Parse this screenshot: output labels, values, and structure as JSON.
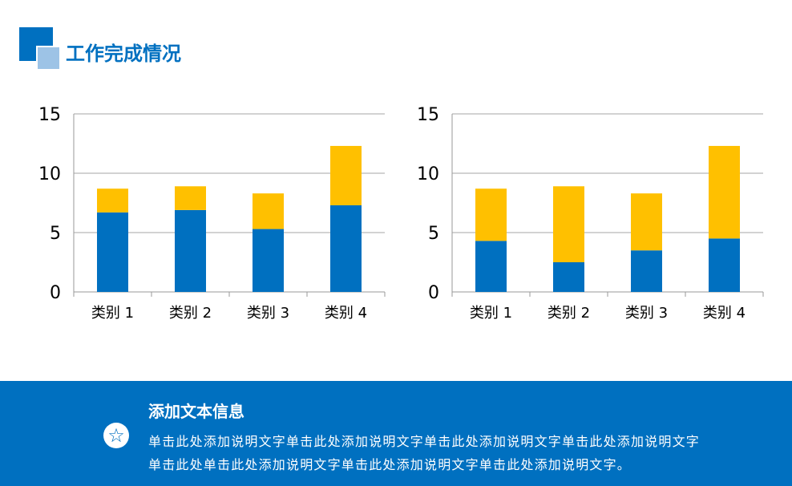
{
  "header": {
    "title": "工作完成情况"
  },
  "colors": {
    "accent": "#0070C0",
    "series_blue": "#0070C0",
    "series_orange": "#FFC000",
    "light_accent": "#9DC3E6"
  },
  "chart_data": [
    {
      "type": "bar",
      "stacked": true,
      "categories": [
        "类别 1",
        "类别 2",
        "类别 3",
        "类别 4"
      ],
      "series": [
        {
          "values": [
            6.7,
            6.9,
            5.3,
            7.3
          ],
          "color": "#0070C0"
        },
        {
          "values": [
            2,
            2,
            3,
            5
          ],
          "color": "#FFC000"
        }
      ],
      "ylim": [
        0,
        15
      ],
      "yticks": [
        "0",
        "5",
        "10",
        "15"
      ],
      "grid": true,
      "legend": "none"
    },
    {
      "type": "bar",
      "stacked": true,
      "categories": [
        "类别 1",
        "类别 2",
        "类别 3",
        "类别 4"
      ],
      "series": [
        {
          "values": [
            4.3,
            2.5,
            3.5,
            4.5
          ],
          "color": "#0070C0"
        },
        {
          "values": [
            4.4,
            6.4,
            4.8,
            7.8
          ],
          "color": "#FFC000"
        }
      ],
      "ylim": [
        0,
        15
      ],
      "yticks": [
        "0",
        "5",
        "10",
        "15"
      ],
      "grid": true,
      "legend": "none"
    }
  ],
  "footer": {
    "icon": "star-icon",
    "title": "添加文本信息",
    "body": "单击此处添加说明文字单击此处添加说明文字单击此处添加说明文字单击此处添加说明文字单击此处单击此处添加说明文字单击此处添加说明文字单击此处添加说明文字。"
  }
}
